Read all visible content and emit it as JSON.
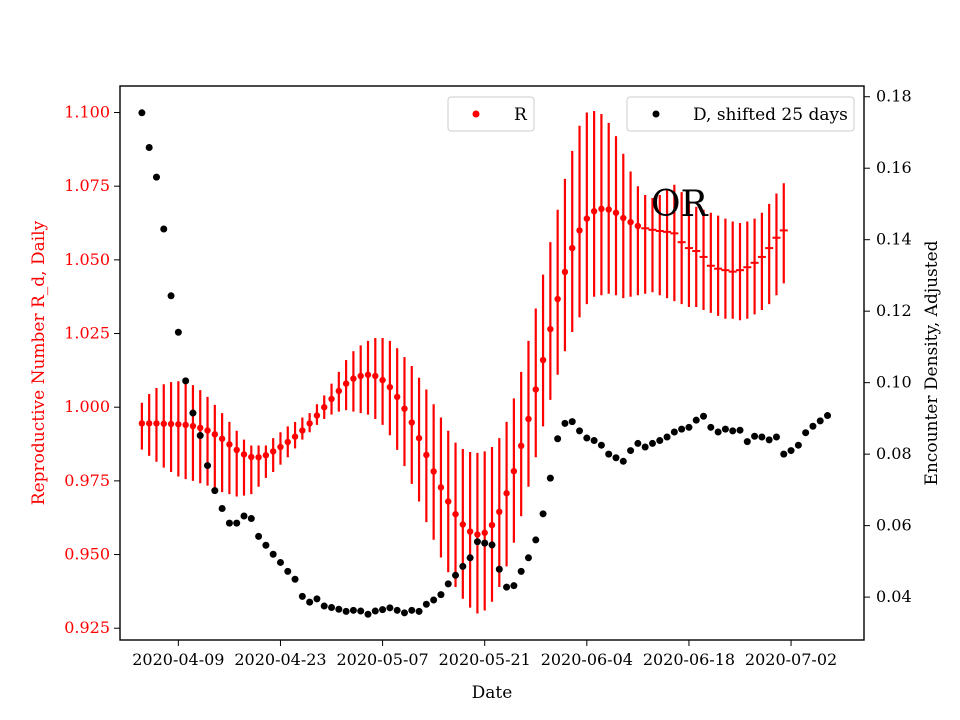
{
  "chart_data": {
    "type": "scatter",
    "xlabel": "Date",
    "x_ticks": [
      "2020-04-09",
      "2020-04-23",
      "2020-05-07",
      "2020-05-21",
      "2020-06-04",
      "2020-06-18",
      "2020-07-02"
    ],
    "x_start": "2020-04-04",
    "x_end": "2020-07-07",
    "xlim": [
      "2020-04-01",
      "2020-07-12"
    ],
    "annotation": "OR",
    "left_axis": {
      "label": "Reproductive Number R_d, Daily",
      "color": "#ff0000",
      "ylim": [
        0.921,
        1.109
      ],
      "ticks": [
        "0.925",
        "0.950",
        "0.975",
        "1.000",
        "1.025",
        "1.050",
        "1.075",
        "1.100"
      ]
    },
    "right_axis": {
      "label": "Encounter Density, Adjusted",
      "color": "#000000",
      "ylim": [
        0.028,
        0.183
      ],
      "ticks": [
        "0.04",
        "0.06",
        "0.08",
        "0.10",
        "0.12",
        "0.14",
        "0.16",
        "0.18"
      ]
    },
    "series": [
      {
        "name": "R",
        "axis": "left",
        "color": "#ff0000",
        "values": [
          0.9945,
          0.9945,
          0.9945,
          0.9944,
          0.9943,
          0.9942,
          0.994,
          0.9936,
          0.993,
          0.9921,
          0.9908,
          0.9893,
          0.9874,
          0.9855,
          0.984,
          0.9831,
          0.983,
          0.9837,
          0.985,
          0.9865,
          0.9882,
          0.99,
          0.9921,
          0.9945,
          0.9972,
          1.0,
          1.0028,
          1.0055,
          1.008,
          1.0097,
          1.0106,
          1.011,
          1.0106,
          1.0092,
          1.0068,
          1.0035,
          0.9995,
          0.9948,
          0.9895,
          0.9838,
          0.9782,
          0.9728,
          0.968,
          0.9637,
          0.9602,
          0.9578,
          0.9568,
          0.9574,
          0.96,
          0.9645,
          0.9708,
          0.9783,
          0.9869,
          0.996,
          1.006,
          1.016,
          1.0265,
          1.0367,
          1.0459,
          1.054,
          1.06,
          1.064,
          1.0665,
          1.0673,
          1.0671,
          1.066,
          1.0642,
          1.0628,
          1.0615,
          1.0607,
          1.0602,
          1.0598,
          1.0595,
          1.059,
          1.056,
          1.054,
          1.053,
          1.051,
          1.048,
          1.047,
          1.0465,
          1.046,
          1.0465,
          1.0475,
          1.049,
          1.051,
          1.054,
          1.0575,
          1.06
        ],
        "err_low": [
          0.9856,
          0.9835,
          0.9815,
          0.9795,
          0.978,
          0.9765,
          0.9756,
          0.975,
          0.9742,
          0.9734,
          0.9722,
          0.9712,
          0.9705,
          0.9697,
          0.97,
          0.9705,
          0.973,
          0.976,
          0.978,
          0.9805,
          0.983,
          0.986,
          0.989,
          0.9915,
          0.994,
          0.996,
          0.9975,
          0.9985,
          0.999,
          0.9985,
          0.998,
          0.9975,
          0.996,
          0.994,
          0.9905,
          0.9855,
          0.98,
          0.974,
          0.968,
          0.961,
          0.955,
          0.949,
          0.944,
          0.939,
          0.935,
          0.932,
          0.93,
          0.931,
          0.934,
          0.939,
          0.946,
          0.954,
          0.963,
          0.973,
          0.983,
          0.9935,
          1.0025,
          1.011,
          1.019,
          1.0255,
          1.0305,
          1.035,
          1.0375,
          1.038,
          1.0385,
          1.038,
          1.037,
          1.0375,
          1.038,
          1.0385,
          1.039,
          1.038,
          1.037,
          1.036,
          1.035,
          1.034,
          1.034,
          1.033,
          1.032,
          1.031,
          1.03,
          1.03,
          1.0295,
          1.03,
          1.0315,
          1.033,
          1.035,
          1.038,
          1.042
        ],
        "err_high": [
          1.0015,
          1.0045,
          1.0065,
          1.0078,
          1.0085,
          1.0088,
          1.0085,
          1.0075,
          1.0058,
          1.0035,
          1.0008,
          0.998,
          0.995,
          0.992,
          0.989,
          0.987,
          0.987,
          0.987,
          0.9895,
          0.9915,
          0.9935,
          0.995,
          0.9965,
          0.998,
          1.001,
          1.004,
          1.008,
          1.012,
          1.016,
          1.019,
          1.021,
          1.0225,
          1.0235,
          1.0235,
          1.0225,
          1.02,
          1.017,
          1.014,
          1.01,
          1.006,
          1.001,
          0.9965,
          0.992,
          0.988,
          0.9858,
          0.9848,
          0.9845,
          0.985,
          0.9865,
          0.9895,
          0.995,
          1.003,
          1.012,
          1.0225,
          1.0335,
          1.045,
          1.056,
          1.067,
          1.0775,
          1.087,
          1.0955,
          1.1,
          1.1005,
          1.0995,
          1.0965,
          1.092,
          1.086,
          1.08,
          1.075,
          1.072,
          1.071,
          1.072,
          1.074,
          1.0755,
          1.073,
          1.07,
          1.068,
          1.067,
          1.066,
          1.065,
          1.064,
          1.063,
          1.0625,
          1.063,
          1.064,
          1.066,
          1.069,
          1.0725,
          1.076
        ]
      },
      {
        "name": "D, shifted 25 days",
        "axis": "right",
        "color": "#000000",
        "values": [
          0.1755,
          0.1658,
          0.1575,
          0.143,
          0.1243,
          0.1141,
          0.1005,
          0.0915,
          0.0852,
          0.0768,
          0.0698,
          0.0648,
          0.0607,
          0.0607,
          0.0627,
          0.062,
          0.057,
          0.0545,
          0.052,
          0.0497,
          0.0472,
          0.045,
          0.0402,
          0.0386,
          0.0395,
          0.0375,
          0.0371,
          0.0366,
          0.036,
          0.0363,
          0.0361,
          0.0352,
          0.0361,
          0.0365,
          0.037,
          0.0363,
          0.0356,
          0.0363,
          0.036,
          0.038,
          0.0392,
          0.0407,
          0.0437,
          0.0461,
          0.0486,
          0.051,
          0.0555,
          0.0551,
          0.0546,
          0.0478,
          0.0428,
          0.0432,
          0.0472,
          0.051,
          0.056,
          0.0633,
          0.0733,
          0.0843,
          0.0886,
          0.0891,
          0.0865,
          0.0845,
          0.0838,
          0.0825,
          0.08,
          0.079,
          0.078,
          0.081,
          0.083,
          0.082,
          0.083,
          0.0838,
          0.0848,
          0.0862,
          0.087,
          0.0875,
          0.0895,
          0.0906,
          0.0875,
          0.0862,
          0.087,
          0.0865,
          0.0867,
          0.0835,
          0.085,
          0.0848,
          0.084,
          0.0848,
          0.08,
          0.081,
          0.0825,
          0.086,
          0.0878,
          0.0893,
          0.0908
        ]
      }
    ],
    "legends": [
      {
        "series": 0,
        "label": "R",
        "position": "top-center"
      },
      {
        "series": 1,
        "label": "D, shifted 25 days",
        "position": "top-right"
      }
    ]
  }
}
